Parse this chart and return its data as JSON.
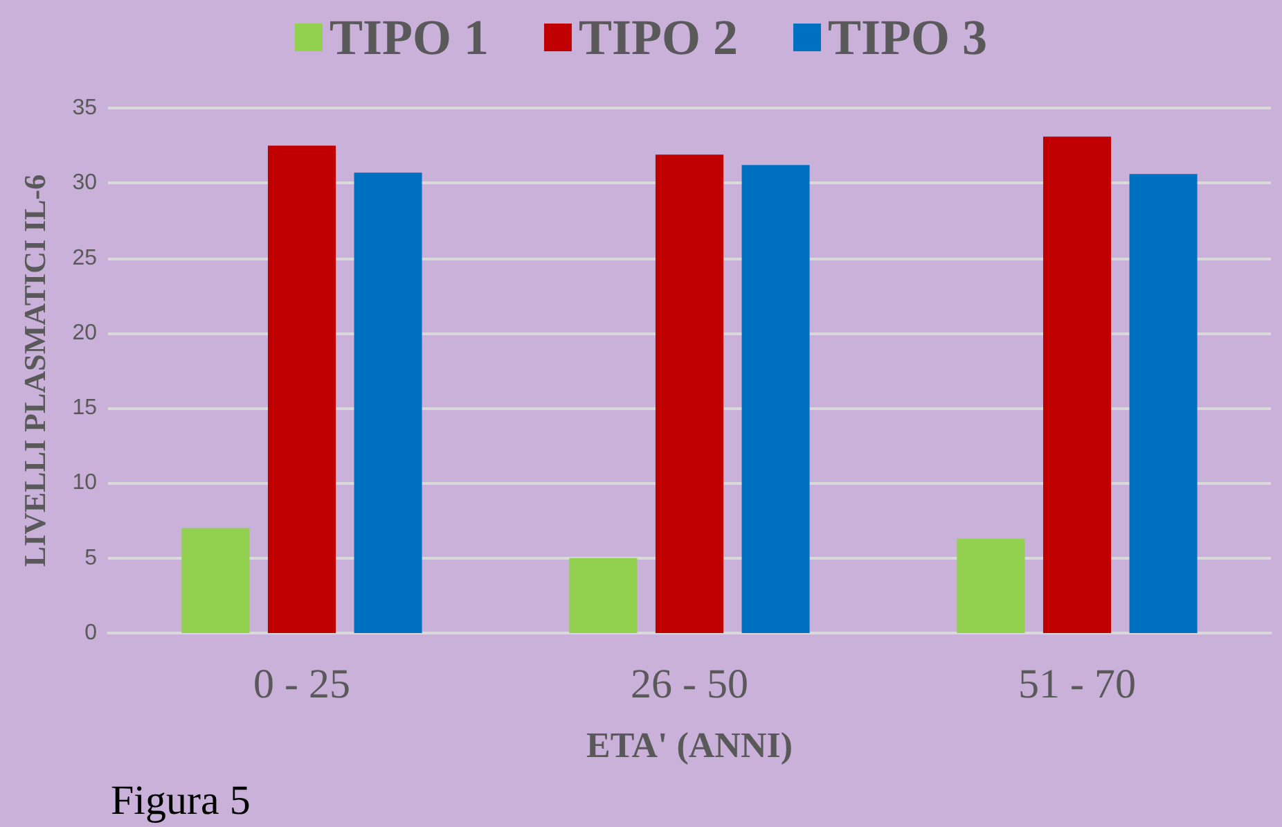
{
  "chart_data": {
    "type": "bar",
    "categories": [
      "0 - 25",
      "26 - 50",
      "51 - 70"
    ],
    "series": [
      {
        "name": "TIPO 1",
        "color": "#92d050",
        "values": [
          7.0,
          5.0,
          6.3
        ]
      },
      {
        "name": "TIPO 2",
        "color": "#c00000",
        "values": [
          32.5,
          31.9,
          33.1
        ]
      },
      {
        "name": "TIPO 3",
        "color": "#0070c0",
        "values": [
          30.7,
          31.2,
          30.6
        ]
      }
    ],
    "xlabel": "ETA' (ANNI)",
    "ylabel": "LIVELLI PLASMATICI IL-6",
    "ylim": [
      0,
      35
    ],
    "yticks": [
      0,
      5,
      10,
      15,
      20,
      25,
      30,
      35
    ],
    "grid": "y",
    "legend": "top",
    "annotations": [
      "Figura 5"
    ]
  }
}
